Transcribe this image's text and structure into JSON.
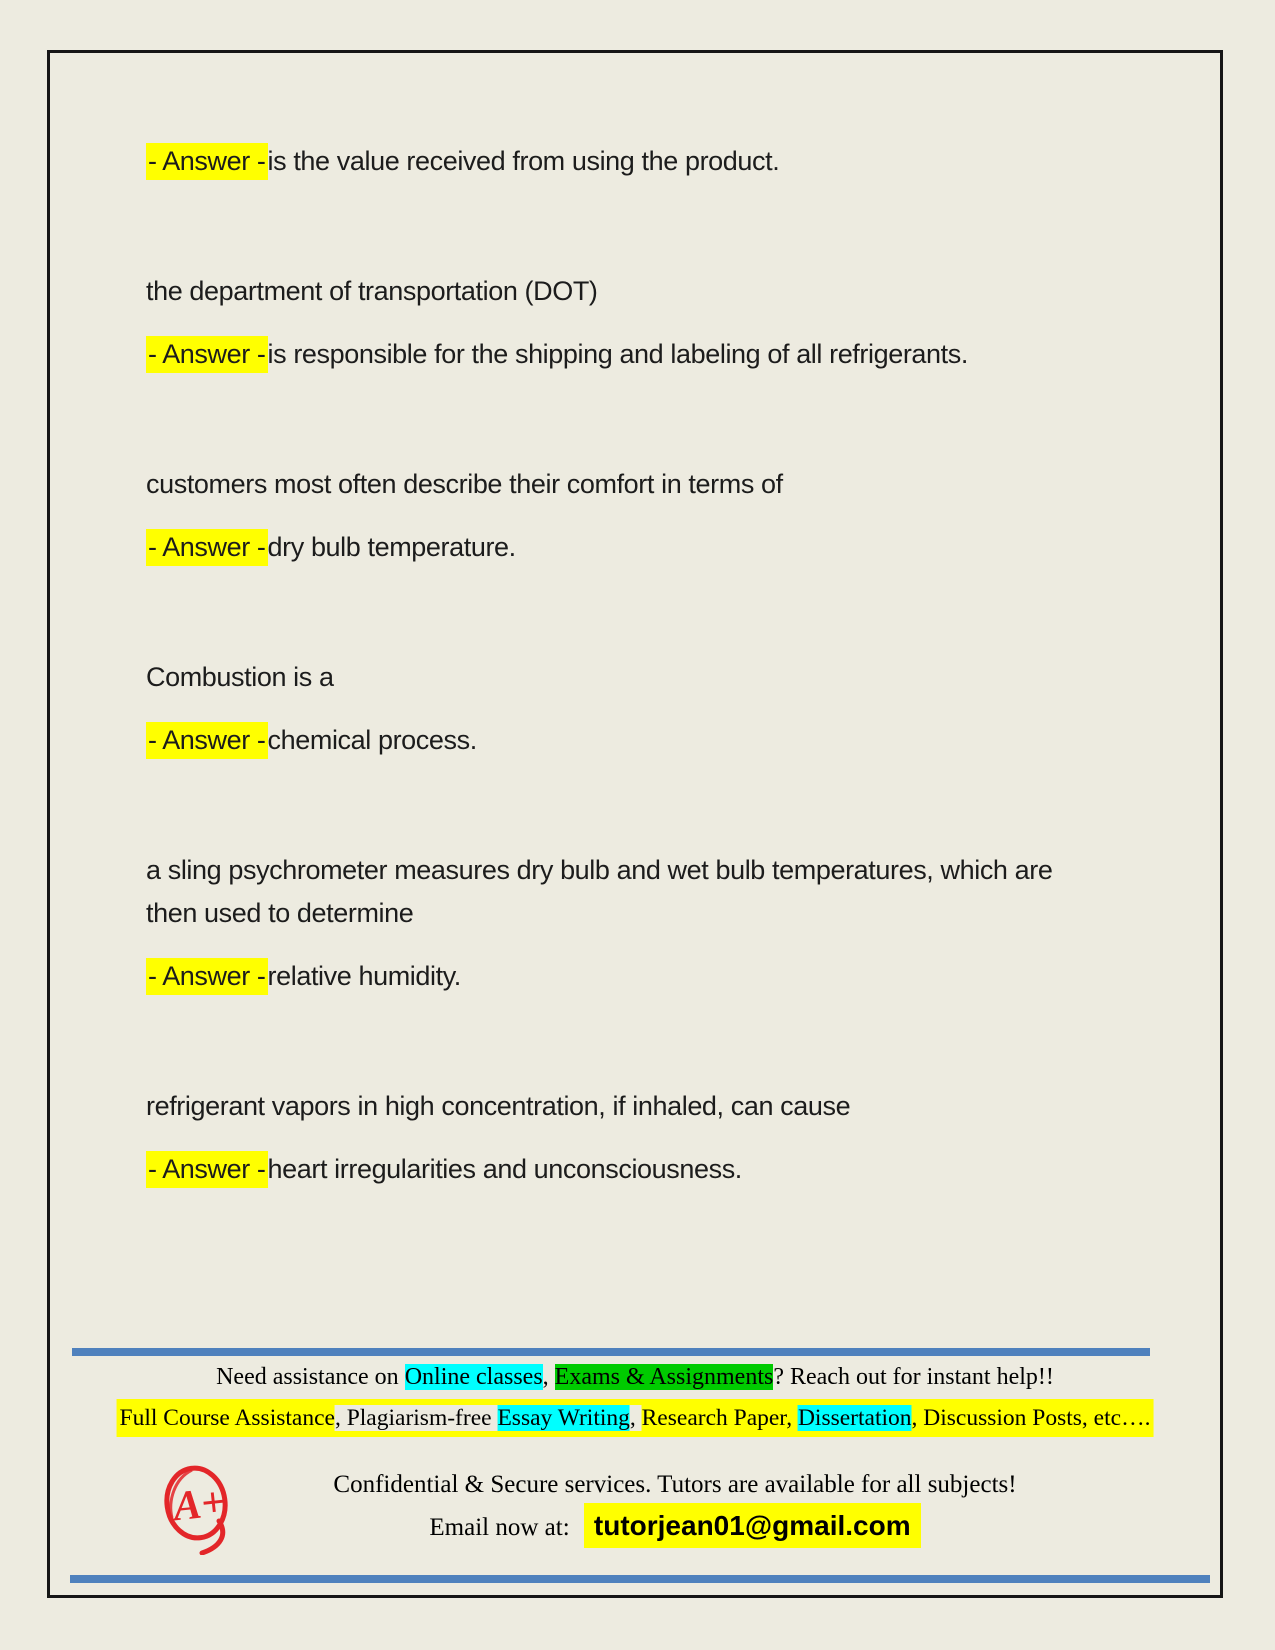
{
  "colors": {
    "page_background": "#edebe0",
    "border_black": "#161616",
    "highlight_yellow": "#ffff00",
    "highlight_cyan": "#00ffff",
    "highlight_green": "#00cb00",
    "rule_blue": "#4f81bd",
    "logo_red": "#e32629",
    "text_black": "#1c1c1c"
  },
  "qa": {
    "answer_prefix": "- Answer -",
    "blocks": [
      {
        "question": "",
        "answer": "is the value received from using the product."
      },
      {
        "question": "the department of transportation (DOT)",
        "answer": "is responsible for the shipping and labeling of all refrigerants."
      },
      {
        "question": "customers most often describe their comfort in terms of",
        "answer": "dry bulb temperature."
      },
      {
        "question": "Combustion is a",
        "answer": "chemical process."
      },
      {
        "question": "a sling psychrometer measures dry bulb and wet bulb temperatures, which are then used to determine",
        "answer": "relative humidity."
      },
      {
        "question": "refrigerant vapors in high concentration, if inhaled, can cause",
        "answer": "heart irregularities and unconsciousness."
      }
    ]
  },
  "footer": {
    "assist_line_segments": [
      {
        "text": "Need assistance on ",
        "highlight": "none"
      },
      {
        "text": "Online classes",
        "highlight": "cyan"
      },
      {
        "text": ", ",
        "highlight": "none"
      },
      {
        "text": "Exams & Assignments",
        "highlight": "green"
      },
      {
        "text": "? Reach out for instant help!!",
        "highlight": "none"
      }
    ],
    "services_line_segments": [
      {
        "text": "Full Course Assistance",
        "highlight": "yellow"
      },
      {
        "text": ", Plagiarism-free ",
        "highlight": "none"
      },
      {
        "text": "Essay Writing",
        "highlight": "cyan"
      },
      {
        "text": ", ",
        "highlight": "none"
      },
      {
        "text": "Research Paper, ",
        "highlight": "yellow"
      },
      {
        "text": "Dissertation",
        "highlight": "cyan"
      },
      {
        "text": ", Discussion Posts, etc….",
        "highlight": "yellow"
      }
    ],
    "confidential_line": "Confidential & Secure services. Tutors are available for all subjects!",
    "email_label": "Email now at:",
    "email_address": "tutorjean01@gmail.com",
    "logo_text": "A+"
  }
}
